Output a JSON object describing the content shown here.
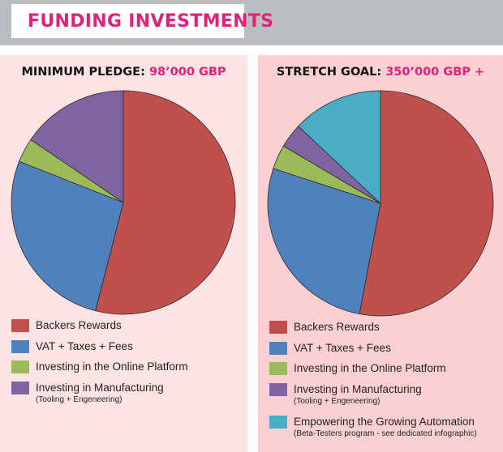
{
  "header": {
    "title": "FUNDING INVESTMENTS"
  },
  "colors": {
    "accent": "#e2227a",
    "banner_bg": "#bcbdbf",
    "left_panel_bg": "#fde3e3",
    "right_panel_bg": "#fbd0d3",
    "backers": "#c0504d",
    "vat": "#4f81bd",
    "online": "#9bbb59",
    "manufacturing": "#8064a2",
    "automation": "#4bacc6"
  },
  "chart_data": [
    {
      "type": "pie",
      "title_label": "MINIMUM PLEDGE:",
      "title_value": "98’000 GBP",
      "slices": [
        {
          "name": "Backers Rewards",
          "value": 54,
          "color": "#c0504d"
        },
        {
          "name": "VAT + Taxes + Fees",
          "value": 27,
          "color": "#4f81bd"
        },
        {
          "name": "Investing in the Online Platform",
          "value": 3.5,
          "color": "#9bbb59"
        },
        {
          "name": "Investing in Manufacturing",
          "sub": "(Tooling + Engeneering)",
          "value": 15.5,
          "color": "#8064a2"
        }
      ]
    },
    {
      "type": "pie",
      "title_label": "STRETCH GOAL:",
      "title_value": "350’000 GBP +",
      "slices": [
        {
          "name": "Backers Rewards",
          "value": 53,
          "color": "#c0504d"
        },
        {
          "name": "VAT + Taxes + Fees",
          "value": 27,
          "color": "#4f81bd"
        },
        {
          "name": "Investing in the Online Platform",
          "value": 3.5,
          "color": "#9bbb59"
        },
        {
          "name": "Investing in Manufacturing",
          "sub": "(Tooling + Engeneering)",
          "value": 3.5,
          "color": "#8064a2"
        },
        {
          "name": "Empowering the Growing Automation",
          "sub": "(Beta-Testers program - see dedicated infographic)",
          "value": 13,
          "color": "#4bacc6"
        }
      ]
    }
  ]
}
